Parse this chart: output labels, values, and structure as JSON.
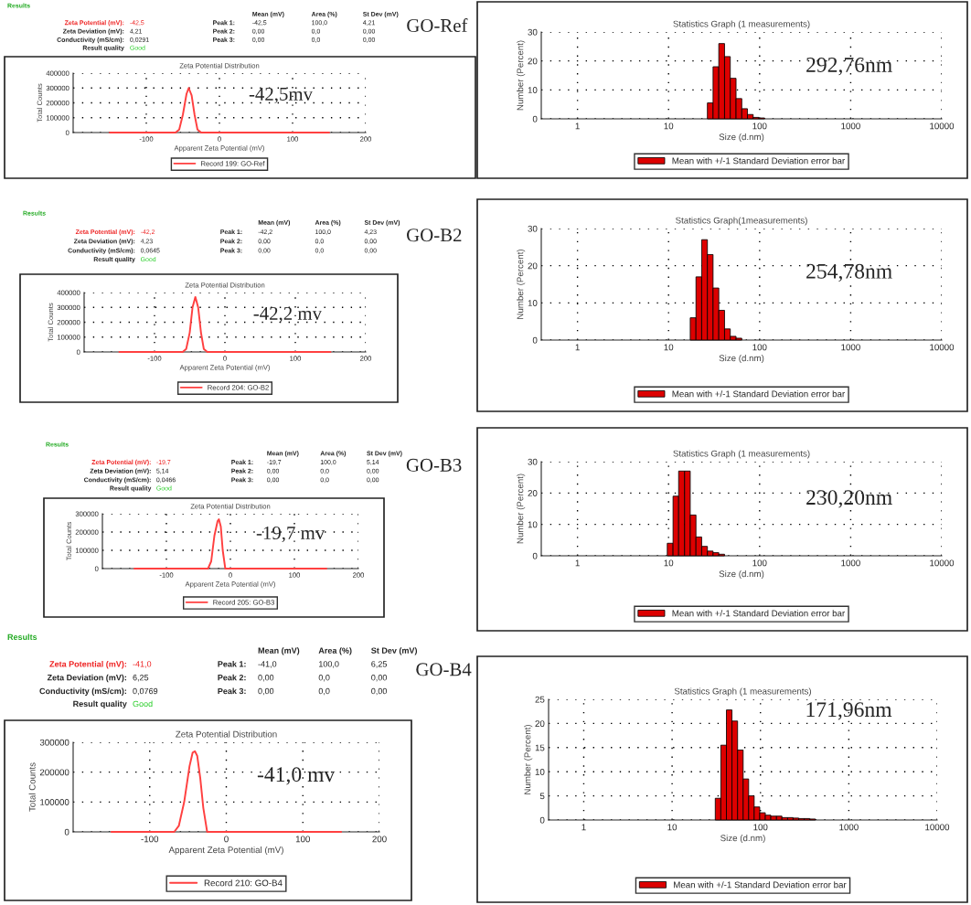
{
  "chart_data": [
    {
      "type": "other",
      "title": "GO-Ref",
      "annotations": [
        "Results",
        "Mean (mV)",
        "Area (%)",
        "St Dev (mV)",
        "Zeta Potential (mV):",
        "-42,5",
        "Peak 1:",
        "-42,5",
        "100,0",
        "4,21",
        "Zeta Deviation (mV):",
        "4,21",
        "Peak 2:",
        "0,00",
        "0,0",
        "0,00",
        "Conductivity (mS/cm):",
        "0,0291",
        "Peak 3:",
        "0,00",
        "0,0",
        "0,00",
        "Result quality",
        "Good"
      ]
    },
    {
      "type": "line",
      "title": "Zeta Potential Distribution",
      "xlabel": "Apparent Zeta Potential (mV)",
      "ylabel": "Total Counts",
      "x": [
        -150,
        -60,
        -55,
        -50,
        -45,
        -42,
        -38,
        -34,
        -30,
        -25,
        150
      ],
      "series": [
        {
          "name": "Record 199: GO-Ref",
          "color": "#ff4040",
          "values": [
            0,
            0,
            20000,
            120000,
            260000,
            300000,
            250000,
            120000,
            20000,
            0,
            0
          ]
        }
      ],
      "xlim": [
        -200,
        200
      ],
      "xticks": [
        -100,
        0,
        100,
        200
      ],
      "ylim": [
        0,
        400000
      ],
      "yticks": [
        0,
        100000,
        200000,
        300000,
        400000
      ],
      "grid": true,
      "legend": "bottom",
      "annotations": [
        "-42,5mv"
      ]
    },
    {
      "type": "histogram",
      "title": "Statistics Graph (1 measurements)",
      "xlabel": "Size (d.nm)",
      "ylabel": "Number (Percent)",
      "bins": [
        26.7,
        30.8,
        35.6,
        41.2,
        47.6,
        55.1,
        63.7,
        73.5,
        84.9,
        98.2,
        113.5
      ],
      "series": [
        {
          "name": "Mean with +/-1 Standard Deviation error bar",
          "color": "#dd0000",
          "values": [
            5.5,
            18,
            26,
            21.5,
            14,
            7,
            3.5,
            1.5,
            0.5,
            0.3
          ]
        }
      ],
      "log": "x",
      "xlim": [
        0.4,
        10000
      ],
      "xticks": [
        1,
        10,
        100,
        1000,
        10000
      ],
      "ylim": [
        0,
        30
      ],
      "yticks": [
        0,
        10,
        20,
        30
      ],
      "grid": true,
      "legend": "bottom",
      "annotations": [
        "292,76nm"
      ]
    },
    {
      "type": "other",
      "title": "GO-B2",
      "annotations": [
        "Results",
        "Mean (mV)",
        "Area (%)",
        "St Dev (mV)",
        "Zeta Potential (mV):",
        "-42,2",
        "Peak 1:",
        "-42,2",
        "100,0",
        "4,23",
        "Zeta Deviation (mV):",
        "4,23",
        "Peak 2:",
        "0,00",
        "0,0",
        "0,00",
        "Conductivity (mS/cm):",
        "0,0645",
        "Peak 3:",
        "0,00",
        "0,0",
        "0,00",
        "Result quality",
        "Good"
      ]
    },
    {
      "type": "line",
      "title": "Zeta Potential Distribution",
      "xlabel": "Apparent Zeta Potential (mV)",
      "ylabel": "Total Counts",
      "x": [
        -150,
        -60,
        -55,
        -50,
        -46,
        -42,
        -38,
        -34,
        -30,
        -25,
        150
      ],
      "series": [
        {
          "name": "Record 204: GO-B2",
          "color": "#ff4040",
          "values": [
            0,
            0,
            20000,
            130000,
            300000,
            370000,
            300000,
            130000,
            20000,
            0,
            0
          ]
        }
      ],
      "xlim": [
        -200,
        200
      ],
      "xticks": [
        -100,
        0,
        100,
        200
      ],
      "ylim": [
        0,
        400000
      ],
      "yticks": [
        0,
        100000,
        200000,
        300000,
        400000
      ],
      "grid": true,
      "legend": "bottom",
      "annotations": [
        "-42,2 mv"
      ]
    },
    {
      "type": "histogram",
      "title": "Statistics Graph(1measurements)",
      "xlabel": "Size (d.nm)",
      "ylabel": "Number (Percent)",
      "bins": [
        17.3,
        20.0,
        23.1,
        26.7,
        30.8,
        35.6,
        41.2,
        47.6,
        55.1,
        63.7
      ],
      "series": [
        {
          "name": "Mean with +/-1 Standard Deviation error bar",
          "color": "#dd0000",
          "values": [
            6,
            17,
            27,
            23,
            14,
            8,
            3,
            1,
            0.5
          ]
        }
      ],
      "log": "x",
      "xlim": [
        0.4,
        10000
      ],
      "xticks": [
        1,
        10,
        100,
        1000,
        10000
      ],
      "ylim": [
        0,
        30
      ],
      "yticks": [
        0,
        10,
        20,
        30
      ],
      "grid": true,
      "legend": "bottom",
      "annotations": [
        "254,78nm"
      ]
    },
    {
      "type": "other",
      "title": "GO-B3",
      "annotations": [
        "Results",
        "Mean (mV)",
        "Area (%)",
        "St Dev (mV)",
        "Zeta Potential (mV):",
        "-19,7",
        "Peak 1:",
        "-19,7",
        "100,0",
        "5,14",
        "Zeta Deviation (mV):",
        "5,14",
        "Peak 2:",
        "0,00",
        "0,0",
        "0,00",
        "Conductivity (mS/cm):",
        "0,0466",
        "Peak 3:",
        "0,00",
        "0,0",
        "0,00",
        "Result quality",
        "Good"
      ]
    },
    {
      "type": "line",
      "title": "Zeta Potential Distribution",
      "xlabel": "Apparent Zeta Potential (mV)",
      "ylabel": "Total Counts",
      "x": [
        -150,
        -35,
        -30,
        -25,
        -20,
        -18,
        -15,
        -12,
        -8,
        150
      ],
      "series": [
        {
          "name": "Record 205: GO-B3",
          "color": "#ff4040",
          "values": [
            0,
            0,
            40000,
            180000,
            260000,
            270000,
            230000,
            100000,
            0,
            0
          ]
        }
      ],
      "xlim": [
        -200,
        200
      ],
      "xticks": [
        -100,
        0,
        100,
        200
      ],
      "ylim": [
        0,
        300000
      ],
      "yticks": [
        0,
        100000,
        200000,
        300000
      ],
      "grid": true,
      "legend": "bottom",
      "annotations": [
        "-19,7 mv"
      ]
    },
    {
      "type": "histogram",
      "title": "Statistics Graph (1 measurements)",
      "xlabel": "Size (d.nm)",
      "ylabel": "Number (Percent)",
      "bins": [
        9.68,
        11.2,
        12.9,
        15.0,
        17.3,
        20.0,
        23.1,
        26.7,
        30.8,
        35.6,
        41.2
      ],
      "series": [
        {
          "name": "Mean with +/-1 Standard Deviation error bar",
          "color": "#dd0000",
          "values": [
            4,
            19,
            27,
            27,
            13,
            6,
            3,
            1.5,
            1,
            0.5
          ]
        }
      ],
      "log": "x",
      "xlim": [
        0.4,
        10000
      ],
      "xticks": [
        1,
        10,
        100,
        1000,
        10000
      ],
      "ylim": [
        0,
        30
      ],
      "yticks": [
        0,
        10,
        20,
        30
      ],
      "grid": true,
      "legend": "bottom",
      "annotations": [
        "230,20nm"
      ]
    },
    {
      "type": "other",
      "title": "GO-B4",
      "annotations": [
        "Results",
        "Mean (mV)",
        "Area (%)",
        "St Dev (mV)",
        "Zeta Potential (mV):",
        "-41,0",
        "Peak 1:",
        "-41,0",
        "100,0",
        "6,25",
        "Zeta Deviation (mV):",
        "6,25",
        "Peak 2:",
        "0,00",
        "0,0",
        "0,00",
        "Conductivity (mS/cm):",
        "0,0769",
        "Peak 3:",
        "0,00",
        "0,0",
        "0,00",
        "Result quality",
        "Good"
      ]
    },
    {
      "type": "line",
      "title": "Zeta Potential Distribution",
      "xlabel": "Apparent Zeta Potential (mV)",
      "ylabel": "Total Counts",
      "x": [
        -150,
        -68,
        -62,
        -55,
        -48,
        -44,
        -41,
        -38,
        -34,
        -30,
        -25,
        150
      ],
      "series": [
        {
          "name": "Record 210: GO-B4",
          "color": "#ff4040",
          "values": [
            0,
            0,
            20000,
            100000,
            220000,
            265000,
            270000,
            255000,
            180000,
            80000,
            0,
            0
          ]
        }
      ],
      "xlim": [
        -200,
        200
      ],
      "xticks": [
        -100,
        0,
        100,
        200
      ],
      "ylim": [
        0,
        300000
      ],
      "yticks": [
        0,
        100000,
        200000,
        300000
      ],
      "grid": true,
      "legend": "bottom",
      "annotations": [
        "-41,0 mv"
      ]
    },
    {
      "type": "histogram",
      "title": "Statistics Graph (1 measurements)",
      "xlabel": "Size (d.nm)",
      "ylabel": "Number (Percent)",
      "bins": [
        30.8,
        35.6,
        41.2,
        47.6,
        55.1,
        63.7,
        73.5,
        84.9,
        98.2,
        113.5,
        131,
        152,
        175,
        203,
        234,
        271,
        313,
        362,
        419
      ],
      "series": [
        {
          "name": "Mean with +/-1 Standard Deviation error bar",
          "color": "#dd0000",
          "values": [
            4.5,
            15.5,
            22.8,
            20.5,
            14.5,
            8.5,
            5,
            2.7,
            1.5,
            1,
            0.8,
            0.8,
            0.5,
            0.5,
            0.4,
            0.3,
            0.3,
            0.2
          ]
        }
      ],
      "log": "x",
      "xlim": [
        0.4,
        10000
      ],
      "xticks": [
        1,
        10,
        100,
        1000,
        10000
      ],
      "ylim": [
        0,
        25
      ],
      "yticks": [
        0,
        5,
        10,
        15,
        20,
        25
      ],
      "grid": true,
      "legend": "bottom",
      "annotations": [
        "171,96nm"
      ]
    }
  ]
}
